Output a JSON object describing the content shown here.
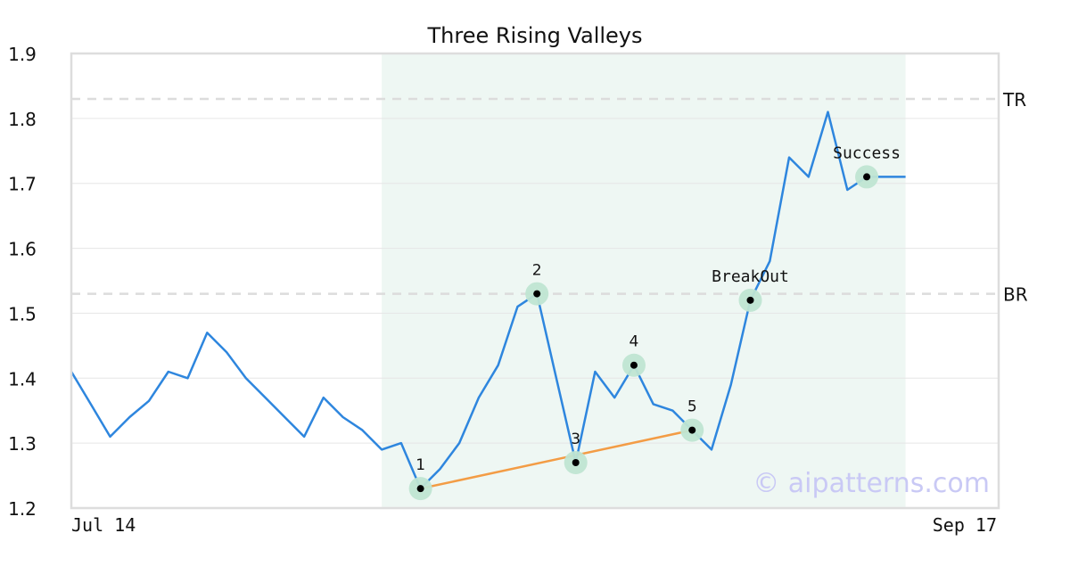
{
  "chart_data": {
    "type": "line",
    "title": "Three Rising Valleys",
    "xlabel": "",
    "ylabel": "",
    "ylim": [
      1.2,
      1.9
    ],
    "y_ticks": [
      "1.2",
      "1.3",
      "1.4",
      "1.5",
      "1.6",
      "1.7",
      "1.8",
      "1.9"
    ],
    "x_tick_labels": {
      "start": "Jul 14",
      "end": "Sep 17"
    },
    "grid": true,
    "series": [
      {
        "color": "#2e86de",
        "values": [
          1.41,
          1.36,
          1.31,
          1.34,
          1.365,
          1.41,
          1.4,
          1.47,
          1.44,
          1.4,
          1.37,
          1.34,
          1.31,
          1.37,
          1.34,
          1.32,
          1.29,
          1.3,
          1.23,
          1.26,
          1.3,
          1.37,
          1.42,
          1.51,
          1.53,
          1.4,
          1.27,
          1.41,
          1.37,
          1.42,
          1.36,
          1.35,
          1.32,
          1.29,
          1.39,
          1.52,
          1.58,
          1.74,
          1.71,
          1.81,
          1.69,
          1.71,
          1.71,
          1.71
        ]
      }
    ],
    "pattern_region": {
      "start_index": 16,
      "end_index": 43,
      "color": "#eef7f3"
    },
    "trend_line": {
      "from_index": 18,
      "to_index": 32,
      "from_value": 1.23,
      "to_value": 1.32,
      "color": "#f39c45"
    },
    "reference_lines": [
      {
        "label": "TR",
        "value": 1.83
      },
      {
        "label": "BR",
        "value": 1.53
      }
    ],
    "markers": [
      {
        "label": "1",
        "index": 18,
        "value": 1.23
      },
      {
        "label": "2",
        "index": 24,
        "value": 1.53
      },
      {
        "label": "3",
        "index": 26,
        "value": 1.27
      },
      {
        "label": "4",
        "index": 29,
        "value": 1.42
      },
      {
        "label": "5",
        "index": 32,
        "value": 1.32
      },
      {
        "label": "BreakOut",
        "index": 35,
        "value": 1.52
      },
      {
        "label": "Success",
        "index": 41,
        "value": 1.71
      }
    ],
    "watermark": "© aipatterns.com"
  }
}
